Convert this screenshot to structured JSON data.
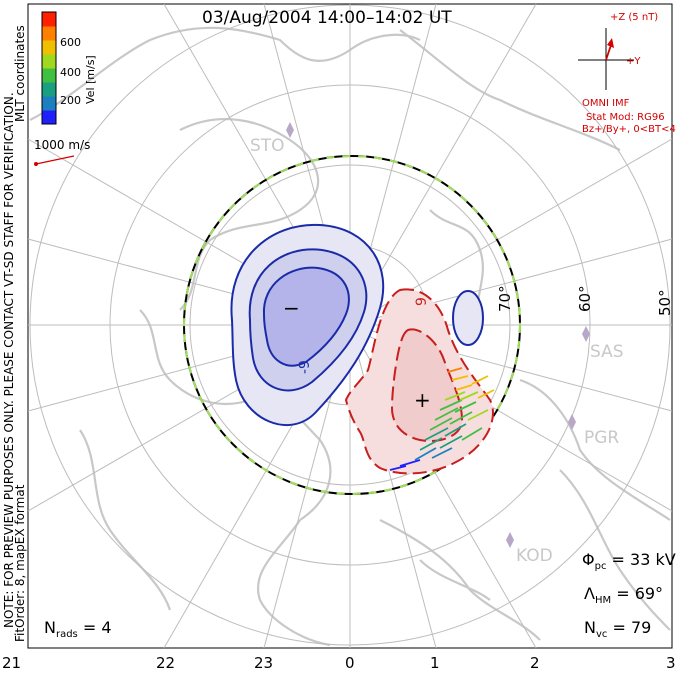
{
  "title": "03/Aug/2004 14:00–14:02 UT",
  "colorbar": {
    "label": "Vel [m/s]",
    "ticks": [
      "600",
      "400",
      "200"
    ],
    "colors": [
      "#2020ff",
      "#1c80c0",
      "#1aa080",
      "#40c040",
      "#a0d820",
      "#f0c000",
      "#ff8000",
      "#ff2000"
    ]
  },
  "vector_scale": "1000 m/s",
  "preview_note": "NOTE: FOR PREVIEW PURPOSES ONLY. PLEASE CONTACT VT-SD STAFF FOR VERIFICATION.",
  "fit_order": "FitOrder: 8, mapEX format",
  "coord_label": "MLT coordinates",
  "imf": {
    "z_label": "+Z (5 nT)",
    "y_label": "+Y",
    "source": "OMNI IMF",
    "stat_mod": "Stat Mod: RG96",
    "conditions": "Bz+/By+, 0<BT<4"
  },
  "stations": [
    {
      "name": "STO"
    },
    {
      "name": "SAS"
    },
    {
      "name": "PGR"
    },
    {
      "name": "KOD"
    }
  ],
  "latitude_labels": [
    "70°",
    "60°",
    "50°"
  ],
  "contour_labels": {
    "neg": "-9",
    "pos": "9"
  },
  "markers": {
    "min": "−",
    "max": "+"
  },
  "stats": {
    "phi_symbol": "Φ",
    "phi_sub": "pc",
    "phi_value": " = 33 kV",
    "lambda_symbol": "Λ",
    "lambda_sub": "HM",
    "lambda_value": " = 69°",
    "nvc_symbol": "N",
    "nvc_sub": "vc",
    "nvc_value": " = 79",
    "nrads_symbol": "N",
    "nrads_sub": "rads",
    "nrads_value": " = 4"
  },
  "chart_data": {
    "type": "contour",
    "x_axis_label": "",
    "mlt_ticks": [
      "21",
      "22",
      "23",
      "0",
      "1",
      "2",
      "3"
    ],
    "latitude_rings": [
      80,
      70,
      60,
      50
    ],
    "heppner_maynard_boundary_lat": 69,
    "cross_polar_cap_potential_kV": 33,
    "vector_count": 79,
    "radar_count": 4
  }
}
